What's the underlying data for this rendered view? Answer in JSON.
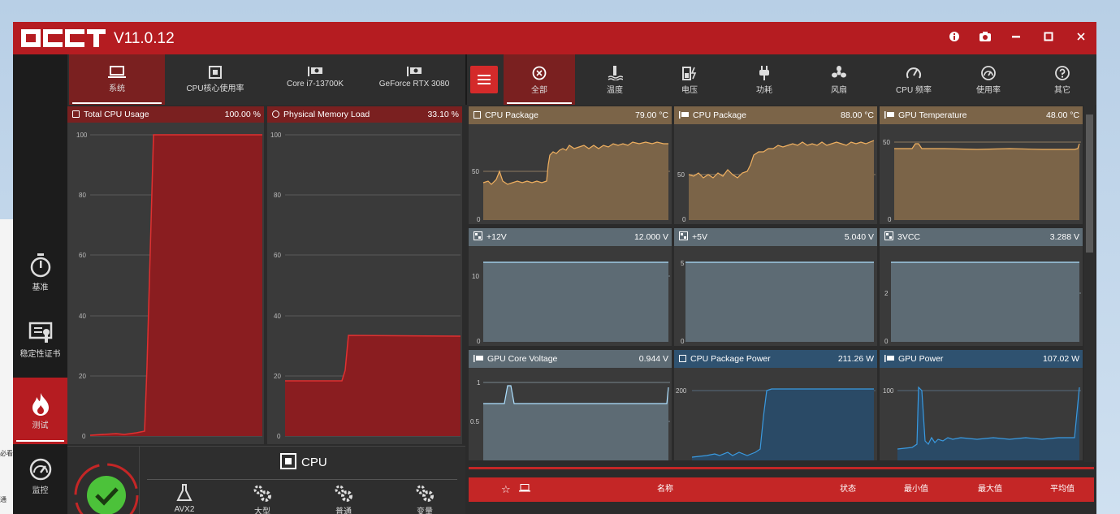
{
  "app": {
    "title": "V11.0.12"
  },
  "left_nav": [
    {
      "label": "基准",
      "icon": "stopwatch-icon"
    },
    {
      "label": "稳定性证书",
      "icon": "certificate-icon"
    },
    {
      "label": "测试",
      "icon": "flame-icon",
      "active": true
    },
    {
      "label": "监控",
      "icon": "gauge-icon"
    }
  ],
  "left_tabs": [
    {
      "label": "系统",
      "icon": "laptop-icon",
      "active": true
    },
    {
      "label": "CPU核心使用率",
      "icon": "cpu-chip-icon"
    },
    {
      "label": "Core i7-13700K",
      "icon": "cpu-card-icon"
    },
    {
      "label": "GeForce RTX 3080",
      "icon": "gpu-card-icon"
    }
  ],
  "cpu_usage": {
    "title": "Total CPU Usage",
    "value": "100.00 %"
  },
  "memory_load": {
    "title": "Physical Memory Load",
    "value": "33.10 %"
  },
  "test_panel": {
    "title": "CPU",
    "modes": [
      "AVX2",
      "大型",
      "普通",
      "变量"
    ]
  },
  "right_tabs": [
    {
      "label": "全部",
      "icon": "all-icon",
      "active": true
    },
    {
      "label": "温度",
      "icon": "thermometer-icon"
    },
    {
      "label": "电压",
      "icon": "battery-icon"
    },
    {
      "label": "功耗",
      "icon": "plug-icon"
    },
    {
      "label": "风扇",
      "icon": "fan-icon"
    },
    {
      "label": "CPU 频率",
      "icon": "frequency-icon"
    },
    {
      "label": "使用率",
      "icon": "usage-icon"
    },
    {
      "label": "其它",
      "icon": "question-icon"
    }
  ],
  "sensors": [
    {
      "name": "CPU Package",
      "value": "79.00 °C",
      "icon": "cpu-icon"
    },
    {
      "name": "CPU Package",
      "value": "88.00 °C",
      "icon": "card-icon"
    },
    {
      "name": "GPU Temperature",
      "value": "48.00 °C",
      "icon": "card-icon"
    },
    {
      "name": "+12V",
      "value": "12.000 V",
      "icon": "board-icon"
    },
    {
      "name": "+5V",
      "value": "5.040 V",
      "icon": "board-icon"
    },
    {
      "name": "3VCC",
      "value": "3.288 V",
      "icon": "board-icon"
    },
    {
      "name": "GPU Core Voltage",
      "value": "0.944 V",
      "icon": "card-icon"
    },
    {
      "name": "CPU Package Power",
      "value": "211.26 W",
      "icon": "cpu-icon"
    },
    {
      "name": "GPU Power",
      "value": "107.02 W",
      "icon": "card-icon"
    }
  ],
  "table": {
    "headers": [
      "名称",
      "状态",
      "最小值",
      "最大值",
      "平均值"
    ]
  },
  "background_window": {
    "texts": [
      "必看",
      "通"
    ]
  },
  "colors": {
    "brand_red": "#b51c21",
    "temp_fill": "#7b6448",
    "temp_line": "#f0b060",
    "volt_fill": "#5d6b74",
    "volt_line": "#aee0ff",
    "power_fill": "#2a4a66",
    "power_line": "#3a9ae0"
  }
}
